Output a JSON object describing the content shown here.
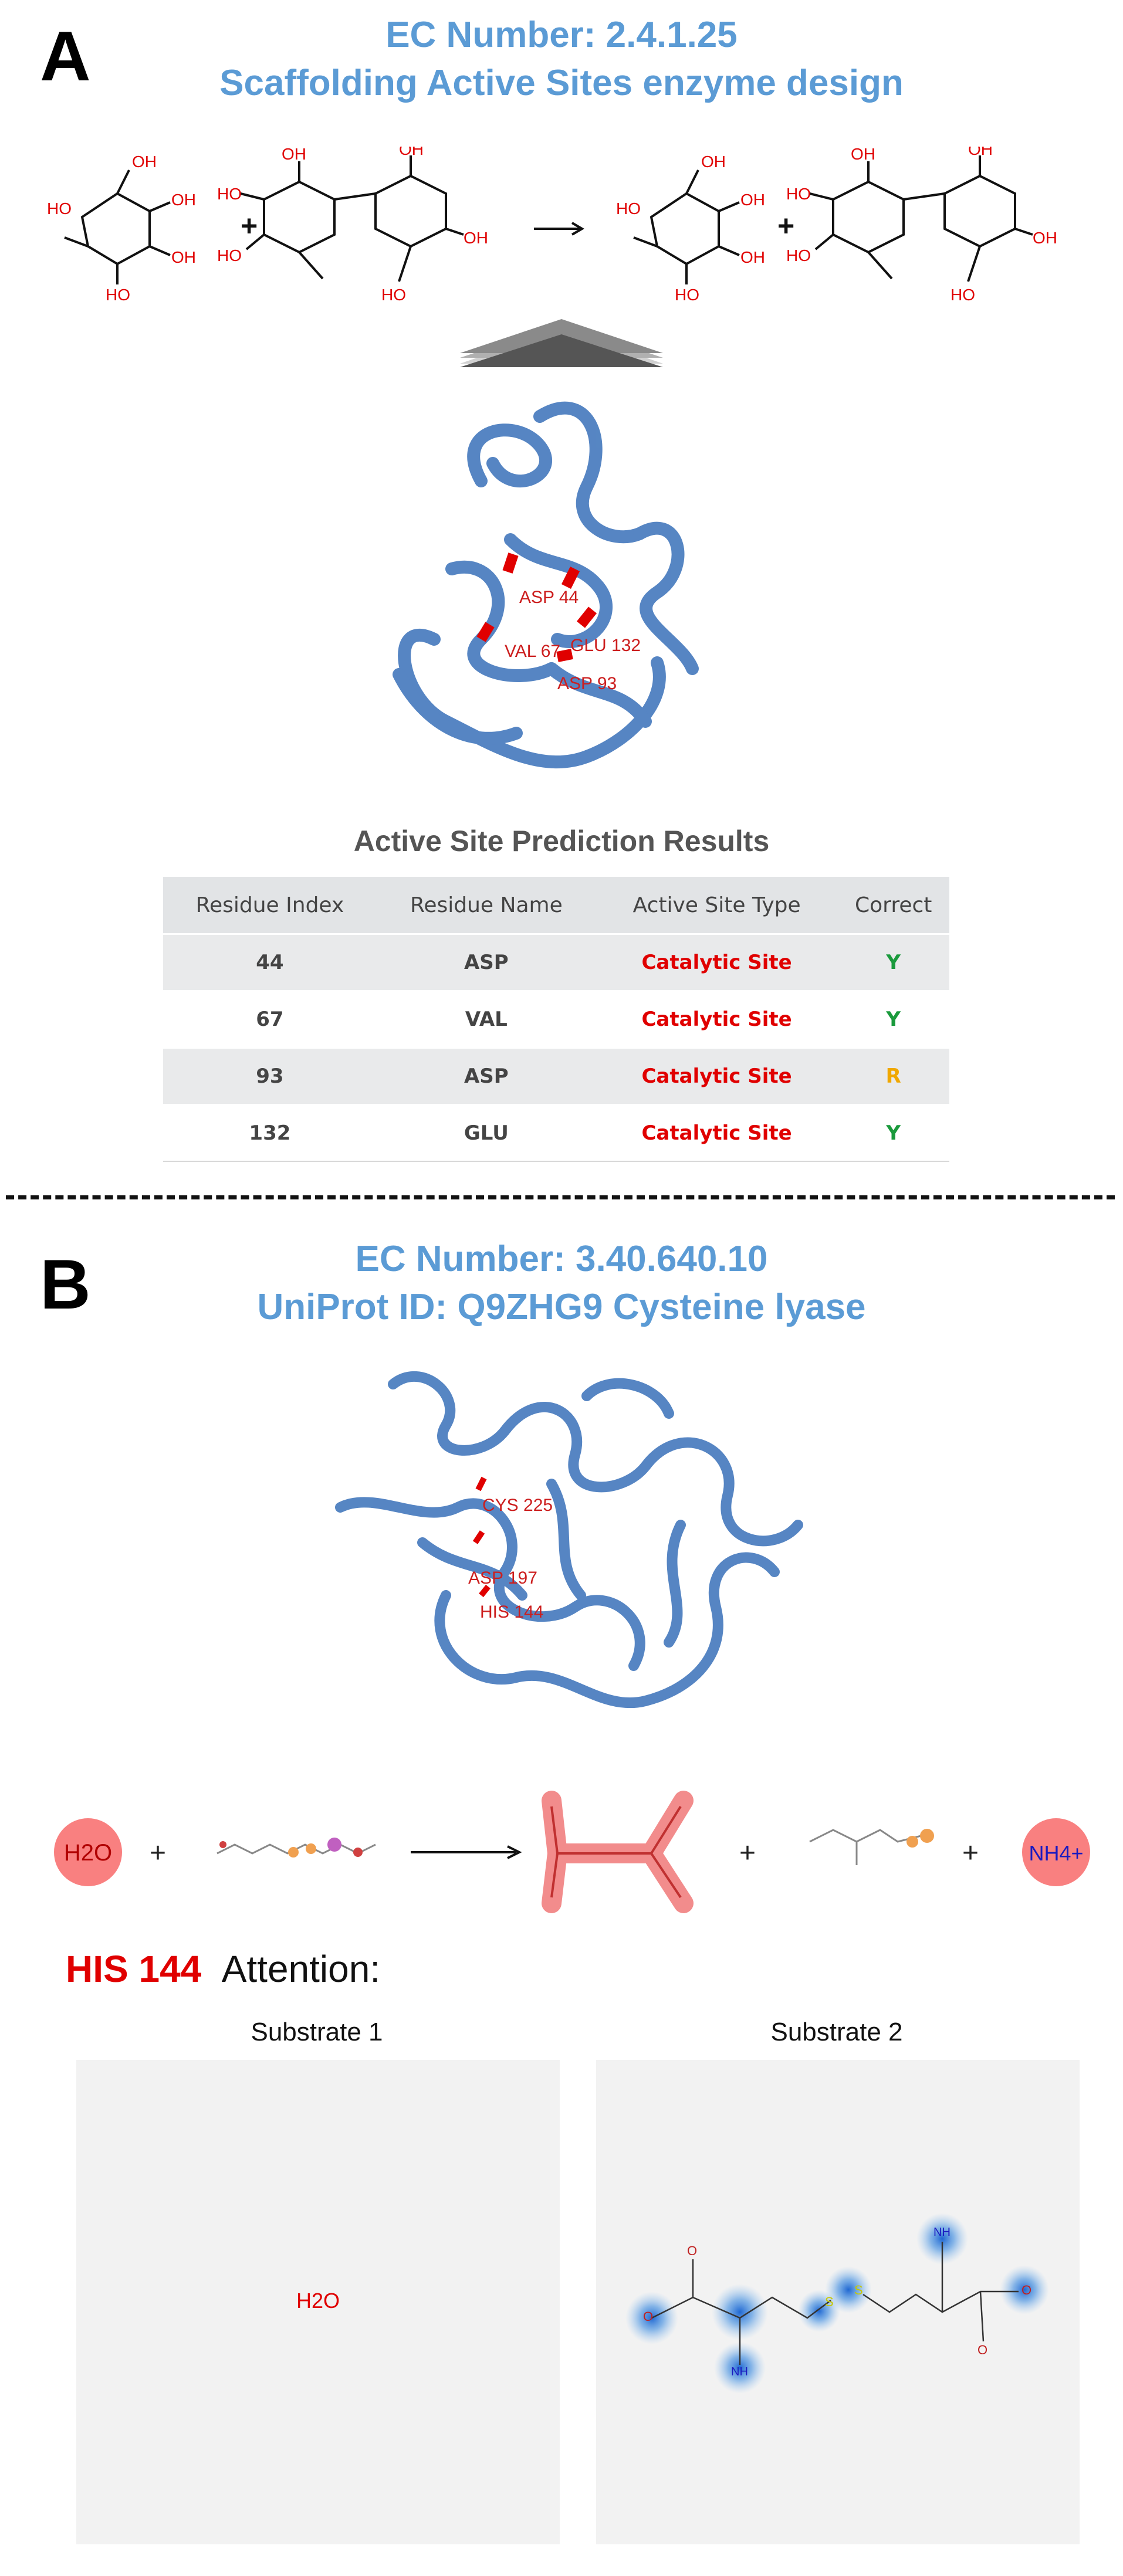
{
  "panel_a": {
    "letter": "A",
    "title_line1": "EC Number: 2.4.1.25",
    "title_line2": "Scaffolding Active Sites enzyme design",
    "structure_labels": [
      "ASP 44",
      "VAL 67",
      "GLU 132",
      "ASP 93"
    ],
    "table_title": "Active Site Prediction Results",
    "table": {
      "headers": [
        "Residue Index",
        "Residue Name",
        "Active Site Type",
        "Correct"
      ],
      "rows": [
        {
          "index": "44",
          "name": "ASP",
          "type": "Catalytic Site",
          "correct": "Y"
        },
        {
          "index": "67",
          "name": "VAL",
          "type": "Catalytic Site",
          "correct": "Y"
        },
        {
          "index": "93",
          "name": "ASP",
          "type": "Catalytic Site",
          "correct": "R"
        },
        {
          "index": "132",
          "name": "GLU",
          "type": "Catalytic Site",
          "correct": "Y"
        }
      ]
    },
    "reaction": {
      "plus1": "+",
      "plus2": "+",
      "oh": "OH",
      "ho": "HO"
    }
  },
  "panel_b": {
    "letter": "B",
    "title_line1": "EC Number: 3.40.640.10",
    "title_line2": "UniProt ID: Q9ZHG9 Cysteine lyase",
    "structure_labels": [
      "CYS 225",
      "ASP 197",
      "HIS 144"
    ],
    "reaction": {
      "water": "H2O",
      "ammonium": "NH4+",
      "plus": "+"
    },
    "attention_residue": "HIS 144",
    "attention_label": "Attention:",
    "substrate1_label": "Substrate 1",
    "substrate2_label": "Substrate 2",
    "substrate1_text": "H2O"
  },
  "colors": {
    "title_blue": "#5b9bd5",
    "highlight_red": "#e00000",
    "correct_green": "#1a9a3c",
    "partial_orange": "#f0a800",
    "protein_blue": "#5b8fcf"
  }
}
